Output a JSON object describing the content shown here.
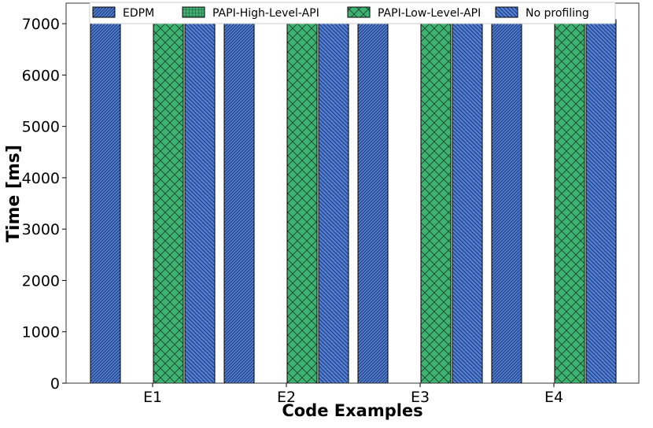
{
  "chart_data": {
    "type": "bar",
    "title": "",
    "xlabel": "Code Examples",
    "ylabel": "Time [ms]",
    "categories": [
      "E1",
      "E2",
      "E3",
      "E4"
    ],
    "ylim": [
      0,
      7400
    ],
    "yticks": [
      0,
      1000,
      2000,
      3000,
      4000,
      5000,
      6000,
      7000
    ],
    "grid": false,
    "legend_position": "top-center",
    "series": [
      {
        "name": "EDPM",
        "values": [
          7080,
          7100,
          7100,
          7100
        ],
        "color": "#4f7fd6",
        "hatch": "diagonal-dense"
      },
      {
        "name": "PAPI-High-Level-API",
        "values": [
          null,
          null,
          null,
          null
        ],
        "color": "#3cb371",
        "hatch": "grid"
      },
      {
        "name": "PAPI-Low-Level-API",
        "values": [
          7150,
          7100,
          7100,
          7120
        ],
        "color": "#3cb371",
        "hatch": "crosshatch"
      },
      {
        "name": "No profiling",
        "values": [
          7020,
          7060,
          7030,
          7080
        ],
        "color": "#4f7fd6",
        "hatch": "diagonal-back"
      }
    ]
  }
}
